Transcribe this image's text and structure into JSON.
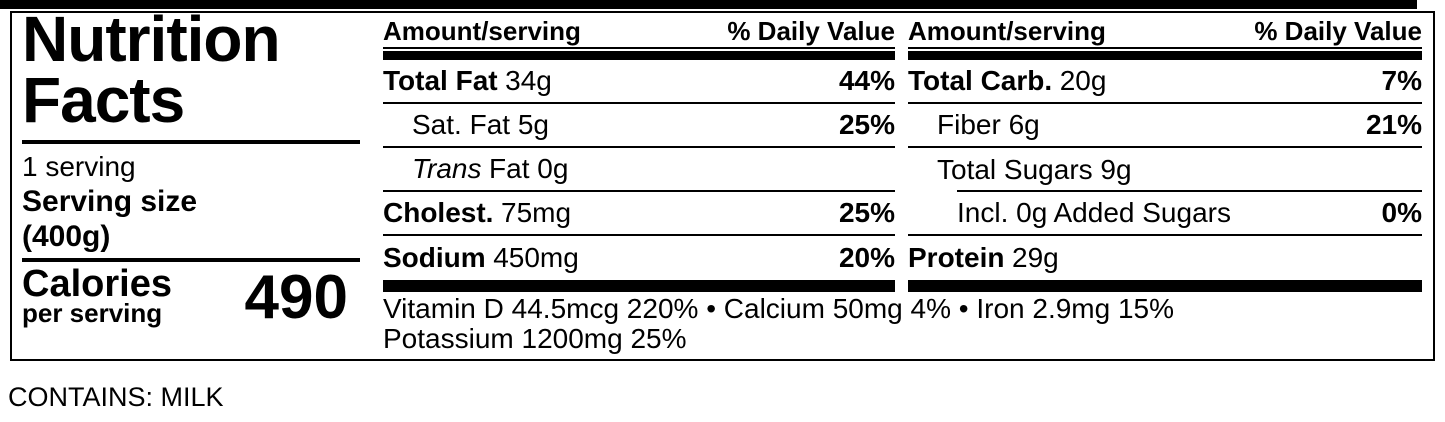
{
  "label": {
    "title_line1": "Nutrition",
    "title_line2": "Facts",
    "servings_per_container": "1 serving",
    "serving_size_label": "Serving size",
    "serving_size_value": "(400g)",
    "calories_label": "Calories",
    "calories_sublabel": "per serving",
    "calories_value": "490",
    "columns": [
      {
        "header_amount": "Amount/serving",
        "header_dv": "% Daily Value",
        "rows": [
          {
            "bold": "Total Fat",
            "regular": "34g",
            "dv": "44%"
          },
          {
            "regular": "Sat. Fat 5g",
            "dv": "25%"
          },
          {
            "italic": "Trans",
            "regular": "Fat 0g",
            "dv": ""
          },
          {
            "bold": "Cholest.",
            "regular": "75mg",
            "dv": "25%"
          },
          {
            "bold": "Sodium",
            "regular": "450mg",
            "dv": "20%"
          }
        ]
      },
      {
        "header_amount": "Amount/serving",
        "header_dv": "% Daily Value",
        "rows": [
          {
            "bold": "Total Carb.",
            "regular": "20g",
            "dv": "7%"
          },
          {
            "regular": "Fiber 6g",
            "dv": "21%"
          },
          {
            "regular": "Total Sugars 9g",
            "dv": ""
          },
          {
            "regular": "Incl. 0g Added Sugars",
            "dv": "0%"
          },
          {
            "bold": "Protein",
            "regular": "29g",
            "dv": ""
          }
        ]
      }
    ],
    "micronutrients_line1": "Vitamin D 44.5mcg 220% • Calcium 50mg 4% • Iron 2.9mg 15%",
    "micronutrients_line2": "Potassium 1200mg 25%"
  },
  "allergen_statement": "CONTAINS: MILK",
  "colors": {
    "ink": "#000000",
    "background": "#ffffff"
  }
}
